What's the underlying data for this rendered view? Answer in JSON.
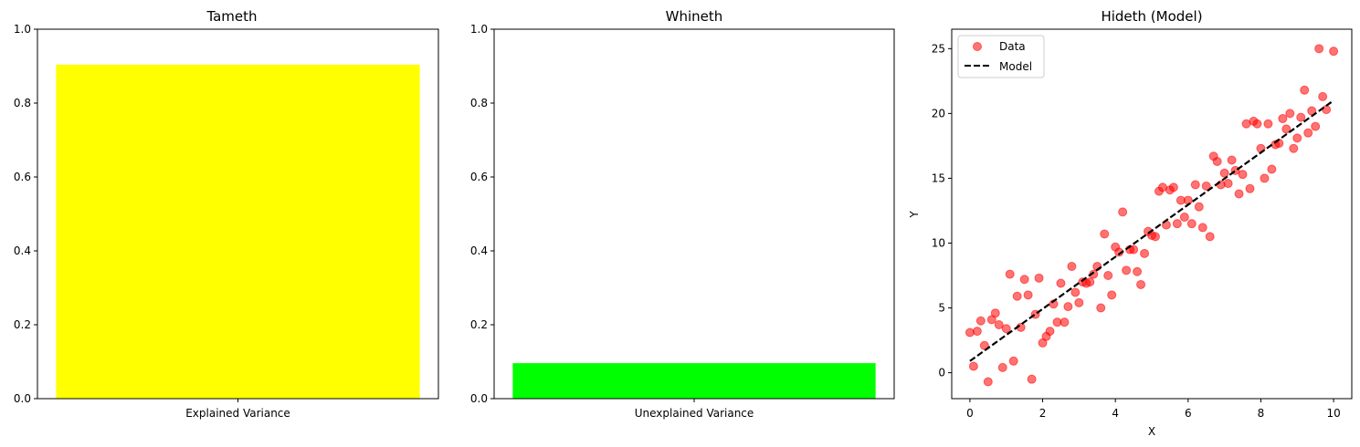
{
  "colors": {
    "explained_bar": "#ffff00",
    "unexplained_bar": "#00ff00",
    "data_points": "#ff0000",
    "model_line": "#000000"
  },
  "chart_data": [
    {
      "type": "bar",
      "title": "Tameth",
      "categories": [
        "Explained Variance"
      ],
      "values": [
        0.904
      ],
      "ylim": [
        0,
        1.0
      ],
      "yticks": [
        "0.0",
        "0.2",
        "0.4",
        "0.6",
        "0.8",
        "1.0"
      ],
      "grid": false
    },
    {
      "type": "bar",
      "title": "Whineth",
      "categories": [
        "Unexplained Variance"
      ],
      "values": [
        0.096
      ],
      "ylim": [
        0,
        1.0
      ],
      "yticks": [
        "0.0",
        "0.2",
        "0.4",
        "0.6",
        "0.8",
        "1.0"
      ],
      "grid": false
    },
    {
      "type": "scatter",
      "title": "Hideth (Model)",
      "xlabel": "X",
      "ylabel": "Y",
      "xlim": [
        -0.5,
        10.5
      ],
      "ylim": [
        -2,
        26.5
      ],
      "xticks": [
        "0",
        "2",
        "4",
        "6",
        "8",
        "10"
      ],
      "yticks": [
        "0",
        "5",
        "10",
        "15",
        "20",
        "25"
      ],
      "legend_position": "upper-left",
      "grid": false,
      "series": [
        {
          "name": "Data",
          "kind": "scatter",
          "points": [
            [
              0.0,
              3.1
            ],
            [
              0.1,
              0.5
            ],
            [
              0.2,
              3.2
            ],
            [
              0.3,
              4.0
            ],
            [
              0.4,
              2.1
            ],
            [
              0.5,
              -0.7
            ],
            [
              0.6,
              4.1
            ],
            [
              0.7,
              4.6
            ],
            [
              0.8,
              3.7
            ],
            [
              0.9,
              0.4
            ],
            [
              1.0,
              3.4
            ],
            [
              1.1,
              7.6
            ],
            [
              1.2,
              0.9
            ],
            [
              1.3,
              5.9
            ],
            [
              1.4,
              3.5
            ],
            [
              1.5,
              7.2
            ],
            [
              1.6,
              6.0
            ],
            [
              1.7,
              -0.5
            ],
            [
              1.8,
              4.5
            ],
            [
              1.9,
              7.3
            ],
            [
              2.0,
              2.3
            ],
            [
              2.1,
              2.8
            ],
            [
              2.2,
              3.2
            ],
            [
              2.3,
              5.3
            ],
            [
              2.4,
              3.9
            ],
            [
              2.5,
              6.9
            ],
            [
              2.6,
              3.9
            ],
            [
              2.7,
              5.1
            ],
            [
              2.8,
              8.2
            ],
            [
              2.9,
              6.2
            ],
            [
              3.0,
              5.4
            ],
            [
              3.1,
              7.0
            ],
            [
              3.2,
              6.9
            ],
            [
              3.3,
              7.0
            ],
            [
              3.4,
              7.6
            ],
            [
              3.5,
              8.2
            ],
            [
              3.6,
              5.0
            ],
            [
              3.7,
              10.7
            ],
            [
              3.8,
              7.5
            ],
            [
              3.9,
              6.0
            ],
            [
              4.0,
              9.7
            ],
            [
              4.1,
              9.3
            ],
            [
              4.2,
              12.4
            ],
            [
              4.3,
              7.9
            ],
            [
              4.4,
              9.5
            ],
            [
              4.5,
              9.5
            ],
            [
              4.6,
              7.8
            ],
            [
              4.7,
              6.8
            ],
            [
              4.8,
              9.2
            ],
            [
              4.9,
              10.9
            ],
            [
              5.0,
              10.6
            ],
            [
              5.1,
              10.5
            ],
            [
              5.2,
              14.0
            ],
            [
              5.3,
              14.3
            ],
            [
              5.4,
              11.4
            ],
            [
              5.5,
              14.1
            ],
            [
              5.6,
              14.3
            ],
            [
              5.7,
              11.5
            ],
            [
              5.8,
              13.3
            ],
            [
              5.9,
              12.0
            ],
            [
              6.0,
              13.3
            ],
            [
              6.1,
              11.5
            ],
            [
              6.2,
              14.5
            ],
            [
              6.3,
              12.8
            ],
            [
              6.4,
              11.2
            ],
            [
              6.5,
              14.4
            ],
            [
              6.6,
              10.5
            ],
            [
              6.7,
              16.7
            ],
            [
              6.8,
              16.3
            ],
            [
              6.9,
              14.5
            ],
            [
              7.0,
              15.4
            ],
            [
              7.1,
              14.6
            ],
            [
              7.2,
              16.4
            ],
            [
              7.3,
              15.6
            ],
            [
              7.4,
              13.8
            ],
            [
              7.5,
              15.3
            ],
            [
              7.6,
              19.2
            ],
            [
              7.7,
              14.2
            ],
            [
              7.8,
              19.4
            ],
            [
              7.9,
              19.2
            ],
            [
              8.0,
              17.3
            ],
            [
              8.1,
              15.0
            ],
            [
              8.2,
              19.2
            ],
            [
              8.3,
              15.7
            ],
            [
              8.4,
              17.6
            ],
            [
              8.5,
              17.7
            ],
            [
              8.6,
              19.6
            ],
            [
              8.7,
              18.8
            ],
            [
              8.8,
              20.0
            ],
            [
              8.9,
              17.3
            ],
            [
              9.0,
              18.1
            ],
            [
              9.1,
              19.7
            ],
            [
              9.2,
              21.8
            ],
            [
              9.3,
              18.5
            ],
            [
              9.4,
              20.2
            ],
            [
              9.5,
              19.0
            ],
            [
              9.6,
              25.0
            ],
            [
              9.7,
              21.3
            ],
            [
              9.8,
              20.3
            ],
            [
              10.0,
              24.8
            ]
          ]
        },
        {
          "name": "Model",
          "kind": "line",
          "style": "dashed",
          "x": [
            0,
            10
          ],
          "y": [
            0.9,
            21.0
          ]
        }
      ]
    }
  ]
}
